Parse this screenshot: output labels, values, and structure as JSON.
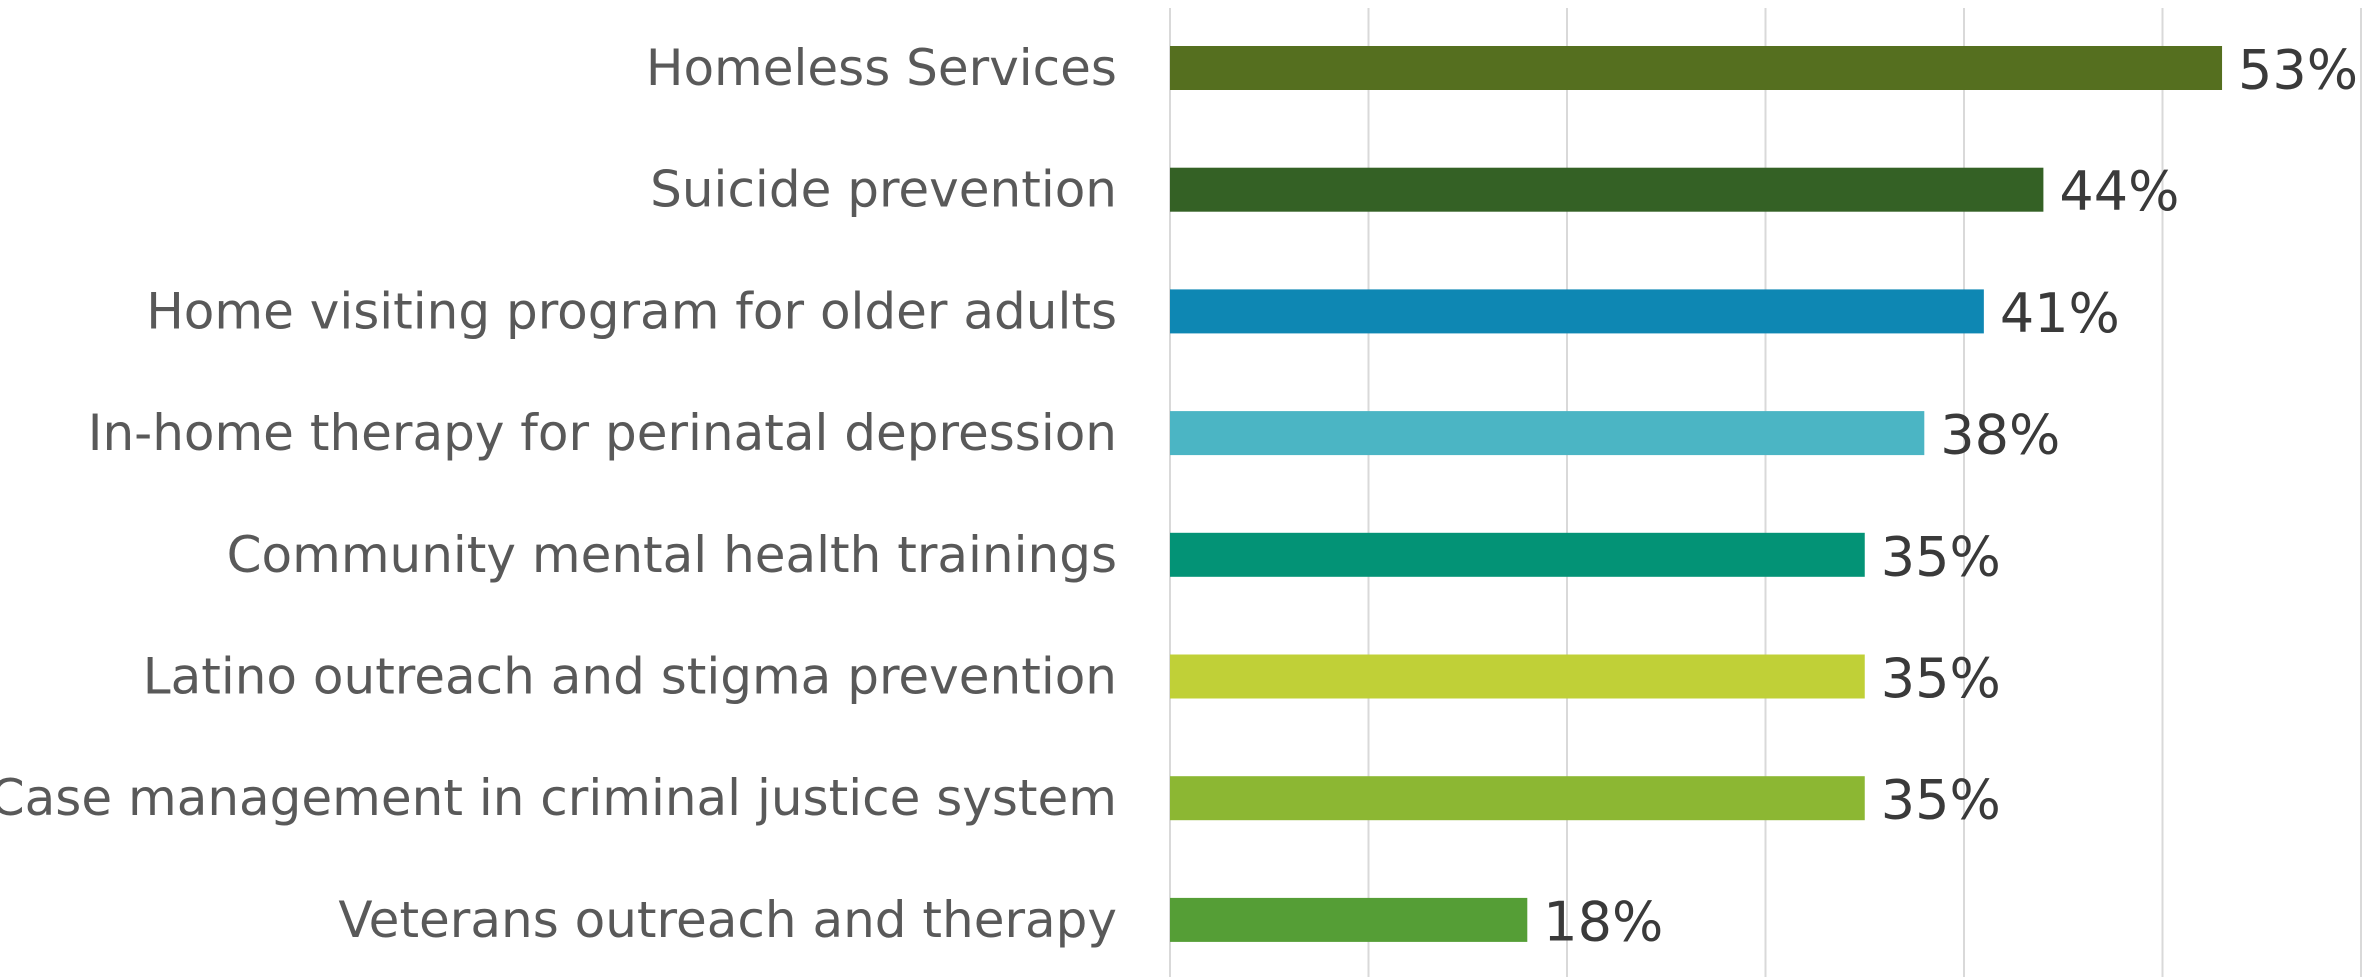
{
  "chart_data": {
    "type": "bar",
    "orientation": "horizontal",
    "title": "",
    "xlabel": "",
    "ylabel": "",
    "categories": [
      "Homeless Services",
      "Suicide prevention",
      "Home visiting program for older adults",
      "In-home therapy for perinatal depression",
      "Community mental health trainings",
      "Latino outreach and stigma prevention",
      "Case management in criminal justice system",
      "Veterans outreach and therapy"
    ],
    "values": [
      53,
      44,
      41,
      38,
      35,
      35,
      35,
      18
    ],
    "value_labels": [
      "53%",
      "44%",
      "41%",
      "38%",
      "35%",
      "35%",
      "35%",
      "18%"
    ],
    "bar_colors": [
      "#556F1F",
      "#346125",
      "#0E87B3",
      "#4BB5C4",
      "#039376",
      "#C0D037",
      "#8CB733",
      "#559E36"
    ],
    "xlim": [
      0,
      60
    ],
    "x_grid_step": 10,
    "grid": true,
    "legend": "none"
  }
}
